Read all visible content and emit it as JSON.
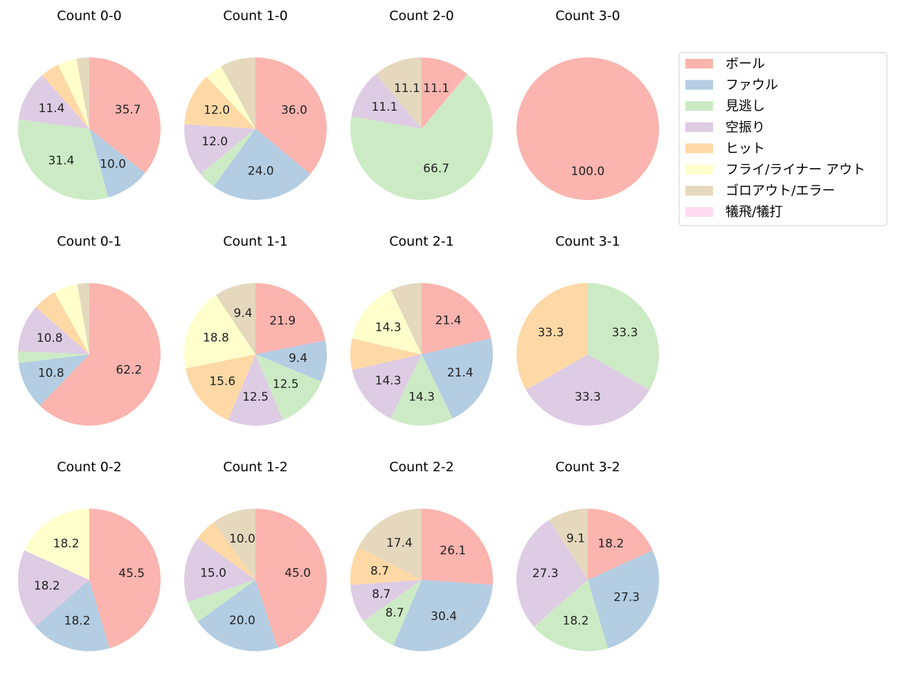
{
  "categories": [
    "ボール",
    "ファウル",
    "見逃し",
    "空振り",
    "ヒット",
    "フライ/ライナー アウト",
    "ゴロアウト/エラー",
    "犠飛/犠打"
  ],
  "colors": [
    "#fbb4ae",
    "#b3cde3",
    "#ccebc5",
    "#decbe4",
    "#fed9a6",
    "#ffffcc",
    "#e5d8bd",
    "#fddaec"
  ],
  "chart_data": {
    "type": "pie",
    "legend_position": "top-right",
    "charts": [
      {
        "title": "Count 0-0",
        "values": [
          35.7,
          10.0,
          31.4,
          11.4,
          4.3,
          4.3,
          2.9,
          0
        ],
        "labels": [
          "35.7",
          "10.0",
          "31.4",
          "11.4",
          "",
          "",
          "",
          ""
        ]
      },
      {
        "title": "Count 1-0",
        "values": [
          36.0,
          24.0,
          4.0,
          12.0,
          12.0,
          4.0,
          8.0,
          0
        ],
        "labels": [
          "36.0",
          "24.0",
          "",
          "12.0",
          "12.0",
          "",
          "",
          ""
        ]
      },
      {
        "title": "Count 2-0",
        "values": [
          11.1,
          0,
          66.7,
          11.1,
          0,
          0,
          11.1,
          0
        ],
        "labels": [
          "11.1",
          "",
          "66.7",
          "11.1",
          "",
          "",
          "11.1",
          ""
        ]
      },
      {
        "title": "Count 3-0",
        "values": [
          100.0,
          0,
          0,
          0,
          0,
          0,
          0,
          0
        ],
        "labels": [
          "100.0",
          "",
          "",
          "",
          "",
          "",
          "",
          ""
        ]
      },
      {
        "title": "Count 0-1",
        "values": [
          62.2,
          10.8,
          2.7,
          10.8,
          5.4,
          5.4,
          2.7,
          0
        ],
        "labels": [
          "62.2",
          "10.8",
          "",
          "10.8",
          "",
          "",
          "",
          ""
        ]
      },
      {
        "title": "Count 1-1",
        "values": [
          21.9,
          9.4,
          12.5,
          12.5,
          15.6,
          18.8,
          9.4,
          0
        ],
        "labels": [
          "21.9",
          "9.4",
          "12.5",
          "12.5",
          "15.6",
          "18.8",
          "9.4",
          ""
        ]
      },
      {
        "title": "Count 2-1",
        "values": [
          21.4,
          21.4,
          14.3,
          14.3,
          7.1,
          14.3,
          7.1,
          0
        ],
        "labels": [
          "21.4",
          "21.4",
          "14.3",
          "14.3",
          "",
          "14.3",
          "",
          ""
        ]
      },
      {
        "title": "Count 3-1",
        "values": [
          0,
          0,
          33.3,
          33.3,
          33.3,
          0,
          0,
          0
        ],
        "labels": [
          "",
          "",
          "33.3",
          "33.3",
          "33.3",
          "",
          "",
          ""
        ]
      },
      {
        "title": "Count 0-2",
        "values": [
          45.5,
          18.2,
          0,
          18.2,
          0,
          18.2,
          0,
          0
        ],
        "labels": [
          "45.5",
          "18.2",
          "",
          "18.2",
          "",
          "18.2",
          "",
          ""
        ]
      },
      {
        "title": "Count 1-2",
        "values": [
          45.0,
          20.0,
          5.0,
          15.0,
          5.0,
          0,
          10.0,
          0
        ],
        "labels": [
          "45.0",
          "20.0",
          "",
          "15.0",
          "",
          "",
          "10.0",
          ""
        ]
      },
      {
        "title": "Count 2-2",
        "values": [
          26.1,
          30.4,
          8.7,
          8.7,
          8.7,
          0,
          17.4,
          0
        ],
        "labels": [
          "26.1",
          "30.4",
          "8.7",
          "8.7",
          "8.7",
          "",
          "17.4",
          ""
        ]
      },
      {
        "title": "Count 3-2",
        "values": [
          18.2,
          27.3,
          18.2,
          27.3,
          0,
          0,
          9.1,
          0
        ],
        "labels": [
          "18.2",
          "27.3",
          "18.2",
          "27.3",
          "",
          "",
          "9.1",
          ""
        ]
      }
    ]
  }
}
